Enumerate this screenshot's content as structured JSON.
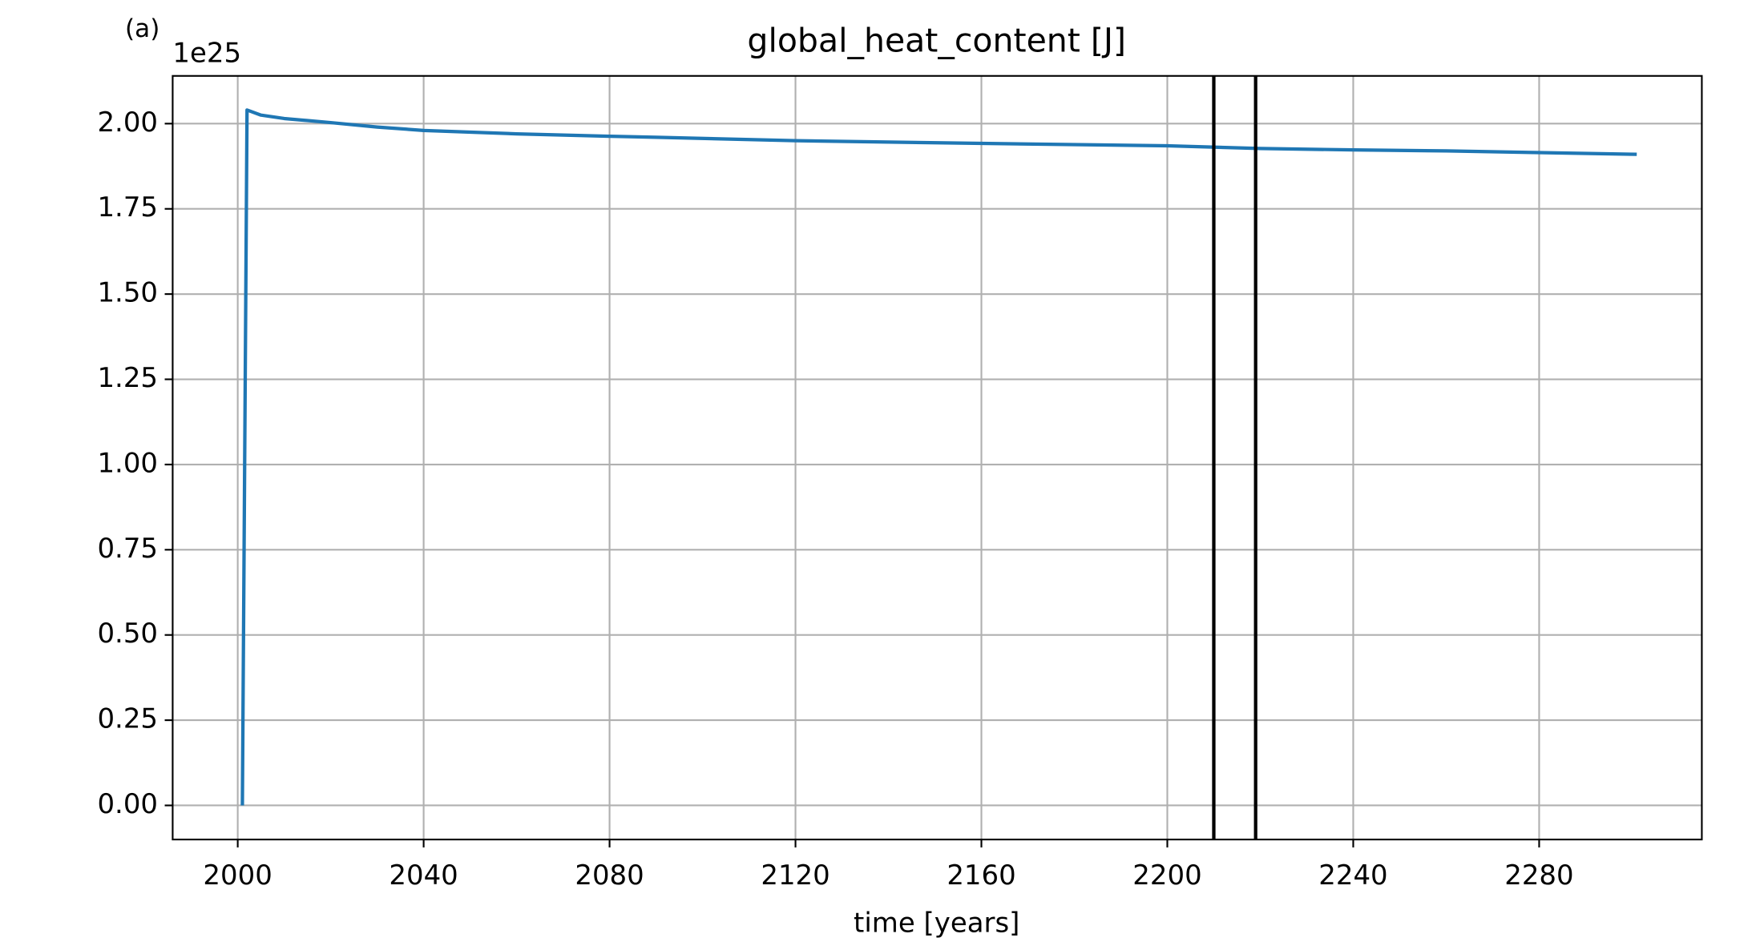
{
  "chart_data": {
    "type": "line",
    "title": "global_heat_content [J]",
    "annotation": "(a)",
    "offset_label": "1e25",
    "xlabel": "time [years]",
    "x": [
      2001,
      2002,
      2005,
      2010,
      2020,
      2030,
      2040,
      2060,
      2080,
      2090,
      2120,
      2160,
      2200,
      2220,
      2240,
      2260,
      2280,
      2301
    ],
    "series": [
      {
        "color": "#1f77b4",
        "values": [
          0.0,
          2.04,
          2.025,
          2.015,
          2.003,
          1.99,
          1.98,
          1.97,
          1.963,
          1.96,
          1.95,
          1.942,
          1.935,
          1.927,
          1.923,
          1.92,
          1.915,
          1.91
        ]
      }
    ],
    "vlines": [
      2210,
      2219
    ],
    "vline_color": "#000000",
    "xlim": [
      1986,
      2315
    ],
    "xticks": [
      2000,
      2040,
      2080,
      2120,
      2160,
      2200,
      2240,
      2280
    ],
    "ylim": [
      -0.1,
      2.14
    ],
    "yticks": [
      {
        "value": 0,
        "label": "0.00"
      },
      {
        "value": 0.25,
        "label": "0.25"
      },
      {
        "value": 0.5,
        "label": "0.50"
      },
      {
        "value": 0.75,
        "label": "0.75"
      },
      {
        "value": 1,
        "label": "1.00"
      },
      {
        "value": 1.25,
        "label": "1.25"
      },
      {
        "value": 1.5,
        "label": "1.50"
      },
      {
        "value": 1.75,
        "label": "1.75"
      },
      {
        "value": 2,
        "label": "2.00"
      }
    ],
    "grid": true
  }
}
